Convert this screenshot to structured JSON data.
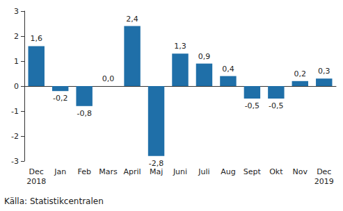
{
  "chart_data": {
    "type": "bar",
    "categories": [
      "Dec\n2018",
      "Jan",
      "Feb",
      "Mars",
      "April",
      "Maj",
      "Juni",
      "Juli",
      "Aug",
      "Sept",
      "Okt",
      "Nov",
      "Dec\n2019"
    ],
    "values": [
      1.6,
      -0.2,
      -0.8,
      0.0,
      2.4,
      -2.8,
      1.3,
      0.9,
      0.4,
      -0.5,
      -0.5,
      0.2,
      0.3
    ],
    "value_labels": [
      "1,6",
      "-0,2",
      "-0,8",
      "0,0",
      "2,4",
      "-2,8",
      "1,3",
      "0,9",
      "0,4",
      "-0,5",
      "-0,5",
      "0,2",
      "0,3"
    ],
    "data_labels": true,
    "color": "#1f6fa8",
    "ylim": [
      -3,
      3
    ],
    "yticks": [
      -3,
      -2,
      -1,
      0,
      1,
      2,
      3
    ],
    "grid": false,
    "note": "Källa: Statistikcentralen"
  }
}
